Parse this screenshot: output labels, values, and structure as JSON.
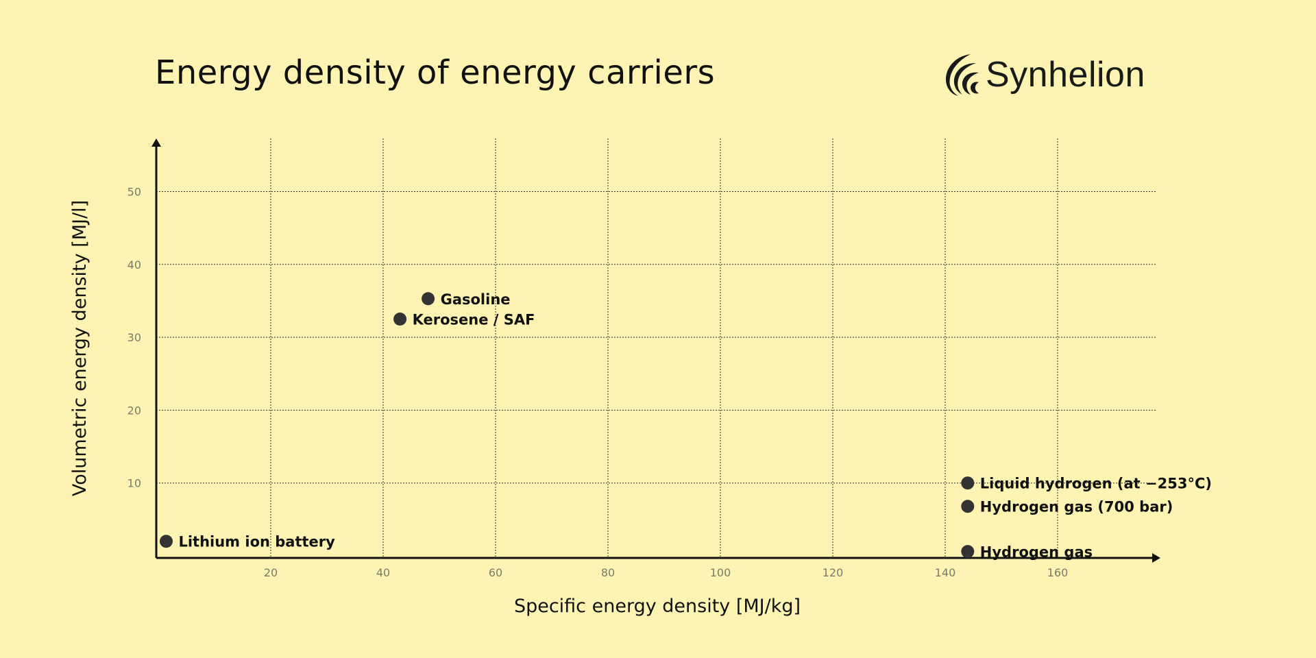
{
  "brand": {
    "name": "Synhelion",
    "logo_icon": "sun-arcs-icon"
  },
  "chart_data": {
    "type": "scatter",
    "title": "Energy density of energy carriers",
    "xlabel": "Specific energy density [MJ/kg]",
    "ylabel": "Volumetric energy density [MJ/l]",
    "xlim": [
      0,
      178
    ],
    "ylim": [
      0,
      57
    ],
    "xticks": [
      20,
      40,
      60,
      80,
      100,
      120,
      140,
      160
    ],
    "yticks": [
      10,
      20,
      30,
      40,
      50
    ],
    "grid": true,
    "point_color": "#333333",
    "points": [
      {
        "label": "Gasoline",
        "x": 48,
        "y": 35.3
      },
      {
        "label": "Kerosene / SAF",
        "x": 43,
        "y": 32.5
      },
      {
        "label": "Lithium ion battery",
        "x": 1.4,
        "y": 2
      },
      {
        "label": "Liquid hydrogen (at −253°C)",
        "x": 144,
        "y": 10
      },
      {
        "label": "Hydrogen gas (700 bar)",
        "x": 144,
        "y": 6.8
      },
      {
        "label": "Hydrogen gas",
        "x": 144,
        "y": 0.6
      }
    ]
  }
}
